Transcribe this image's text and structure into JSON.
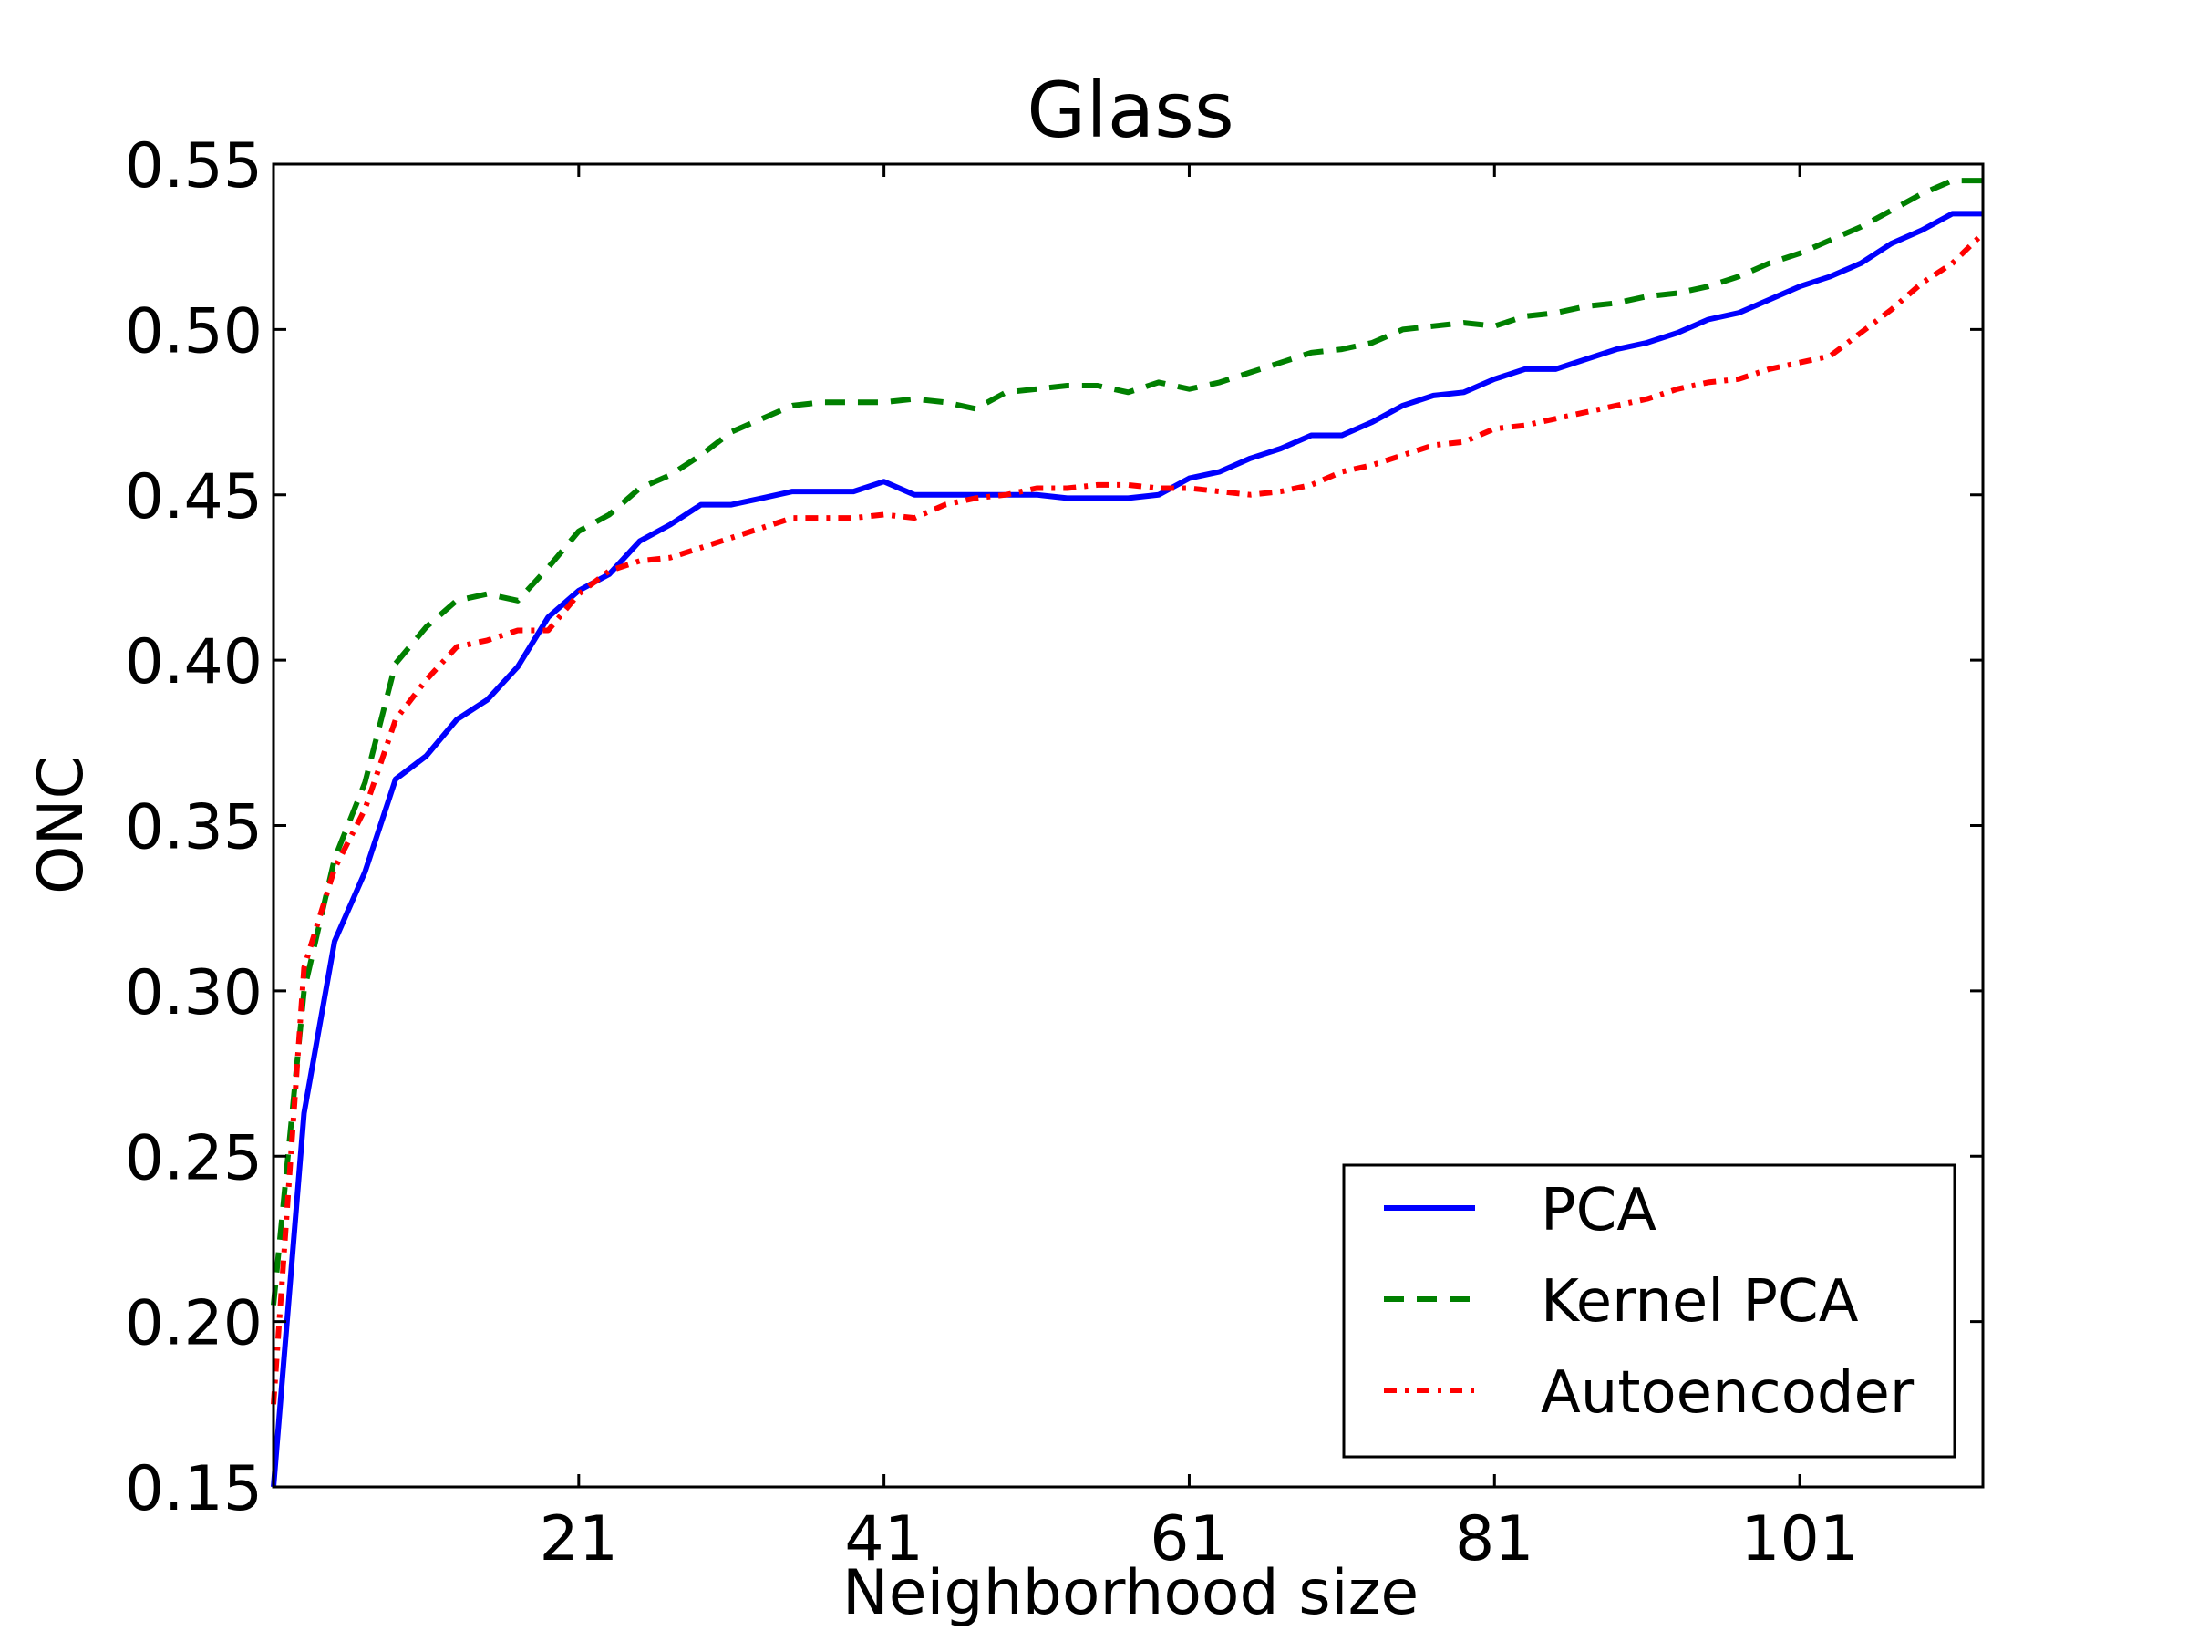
{
  "chart_data": {
    "type": "line",
    "title": "Glass",
    "xlabel": "Neighborhood size",
    "ylabel": "ONC",
    "xlim": [
      1,
      113
    ],
    "ylim": [
      0.15,
      0.55
    ],
    "xticks": [
      21,
      41,
      61,
      81,
      101
    ],
    "yticks": [
      0.15,
      0.2,
      0.25,
      0.3,
      0.35,
      0.4,
      0.45,
      0.5,
      0.55
    ],
    "ytick_labels": [
      "0.15",
      "0.20",
      "0.25",
      "0.30",
      "0.35",
      "0.40",
      "0.45",
      "0.50",
      "0.55"
    ],
    "grid": false,
    "legend_position": "lower-right",
    "x": [
      1,
      3,
      5,
      7,
      9,
      11,
      13,
      15,
      17,
      19,
      21,
      23,
      25,
      27,
      29,
      31,
      33,
      35,
      37,
      39,
      41,
      43,
      45,
      47,
      49,
      51,
      53,
      55,
      57,
      59,
      61,
      63,
      65,
      67,
      69,
      71,
      73,
      75,
      77,
      79,
      81,
      83,
      85,
      87,
      89,
      91,
      93,
      95,
      97,
      99,
      101,
      103,
      105,
      107,
      109,
      111,
      113
    ],
    "series": [
      {
        "name": "PCA",
        "color": "#0000ff",
        "style": "solid",
        "values": [
          0.15,
          0.263,
          0.315,
          0.336,
          0.364,
          0.371,
          0.382,
          0.388,
          0.398,
          0.413,
          0.421,
          0.426,
          0.436,
          0.441,
          0.447,
          0.447,
          0.449,
          0.451,
          0.451,
          0.451,
          0.454,
          0.45,
          0.45,
          0.45,
          0.45,
          0.45,
          0.449,
          0.449,
          0.449,
          0.45,
          0.455,
          0.457,
          0.461,
          0.464,
          0.468,
          0.468,
          0.472,
          0.477,
          0.48,
          0.481,
          0.485,
          0.488,
          0.488,
          0.491,
          0.494,
          0.496,
          0.499,
          0.503,
          0.505,
          0.509,
          0.513,
          0.516,
          0.52,
          0.526,
          0.53,
          0.535,
          0.535
        ]
      },
      {
        "name": "Kernel PCA",
        "color": "#008000",
        "style": "dashed",
        "values": [
          0.205,
          0.3,
          0.34,
          0.363,
          0.399,
          0.41,
          0.418,
          0.42,
          0.418,
          0.428,
          0.439,
          0.444,
          0.452,
          0.456,
          0.462,
          0.469,
          0.473,
          0.477,
          0.478,
          0.478,
          0.478,
          0.479,
          0.478,
          0.476,
          0.481,
          0.482,
          0.483,
          0.483,
          0.481,
          0.484,
          0.482,
          0.484,
          0.487,
          0.49,
          0.493,
          0.494,
          0.496,
          0.5,
          0.501,
          0.502,
          0.501,
          0.504,
          0.505,
          0.507,
          0.508,
          0.51,
          0.511,
          0.513,
          0.516,
          0.52,
          0.523,
          0.527,
          0.531,
          0.536,
          0.541,
          0.545,
          0.545
        ]
      },
      {
        "name": "Autoencoder",
        "color": "#ff0000",
        "style": "dashdot",
        "values": [
          0.175,
          0.307,
          0.337,
          0.355,
          0.382,
          0.394,
          0.404,
          0.406,
          0.409,
          0.409,
          0.42,
          0.427,
          0.43,
          0.431,
          0.434,
          0.437,
          0.44,
          0.443,
          0.443,
          0.443,
          0.444,
          0.443,
          0.447,
          0.449,
          0.45,
          0.452,
          0.452,
          0.453,
          0.453,
          0.452,
          0.452,
          0.451,
          0.45,
          0.451,
          0.453,
          0.457,
          0.459,
          0.462,
          0.465,
          0.466,
          0.47,
          0.471,
          0.473,
          0.475,
          0.477,
          0.479,
          0.482,
          0.484,
          0.485,
          0.488,
          0.49,
          0.492,
          0.499,
          0.506,
          0.514,
          0.52,
          0.529
        ]
      }
    ]
  }
}
